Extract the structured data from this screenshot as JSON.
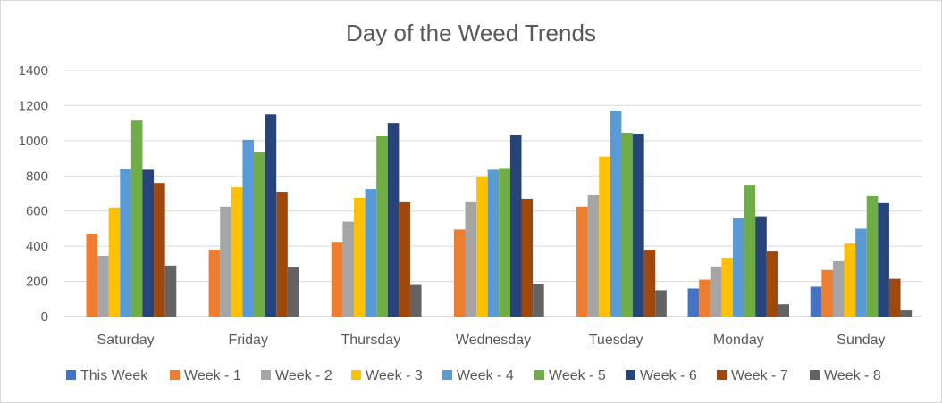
{
  "chart_data": {
    "type": "bar",
    "title": "Day of the Weed Trends",
    "xlabel": "",
    "ylabel": "",
    "ylim": [
      0,
      1400
    ],
    "yticks": [
      0,
      200,
      400,
      600,
      800,
      1000,
      1200,
      1400
    ],
    "grid": true,
    "legend_position": "bottom",
    "categories": [
      "Saturday",
      "Friday",
      "Thursday",
      "Wednesday",
      "Tuesday",
      "Monday",
      "Sunday"
    ],
    "series": [
      {
        "name": "This Week",
        "color": "#4472C4",
        "values": [
          null,
          null,
          null,
          null,
          null,
          160,
          170
        ]
      },
      {
        "name": "Week - 1",
        "color": "#ED7D31",
        "values": [
          470,
          380,
          425,
          495,
          625,
          210,
          265
        ]
      },
      {
        "name": "Week - 2",
        "color": "#A5A5A5",
        "values": [
          345,
          625,
          540,
          650,
          690,
          285,
          315
        ]
      },
      {
        "name": "Week - 3",
        "color": "#FFC000",
        "values": [
          620,
          735,
          675,
          795,
          910,
          335,
          415
        ]
      },
      {
        "name": "Week - 4",
        "color": "#5B9BD5",
        "values": [
          840,
          1005,
          725,
          835,
          1170,
          560,
          500
        ]
      },
      {
        "name": "Week - 5",
        "color": "#70AD47",
        "values": [
          1115,
          935,
          1030,
          845,
          1045,
          745,
          685
        ]
      },
      {
        "name": "Week - 6",
        "color": "#264478",
        "values": [
          835,
          1150,
          1100,
          1035,
          1040,
          570,
          645
        ]
      },
      {
        "name": "Week - 7",
        "color": "#9E480E",
        "values": [
          760,
          710,
          650,
          670,
          380,
          370,
          215
        ]
      },
      {
        "name": "Week - 8",
        "color": "#636363",
        "values": [
          290,
          280,
          180,
          185,
          150,
          70,
          35
        ]
      }
    ]
  },
  "colors": {
    "gridline": "#d9d9d9",
    "axis": "#bfbfbf",
    "text": "#595959"
  }
}
